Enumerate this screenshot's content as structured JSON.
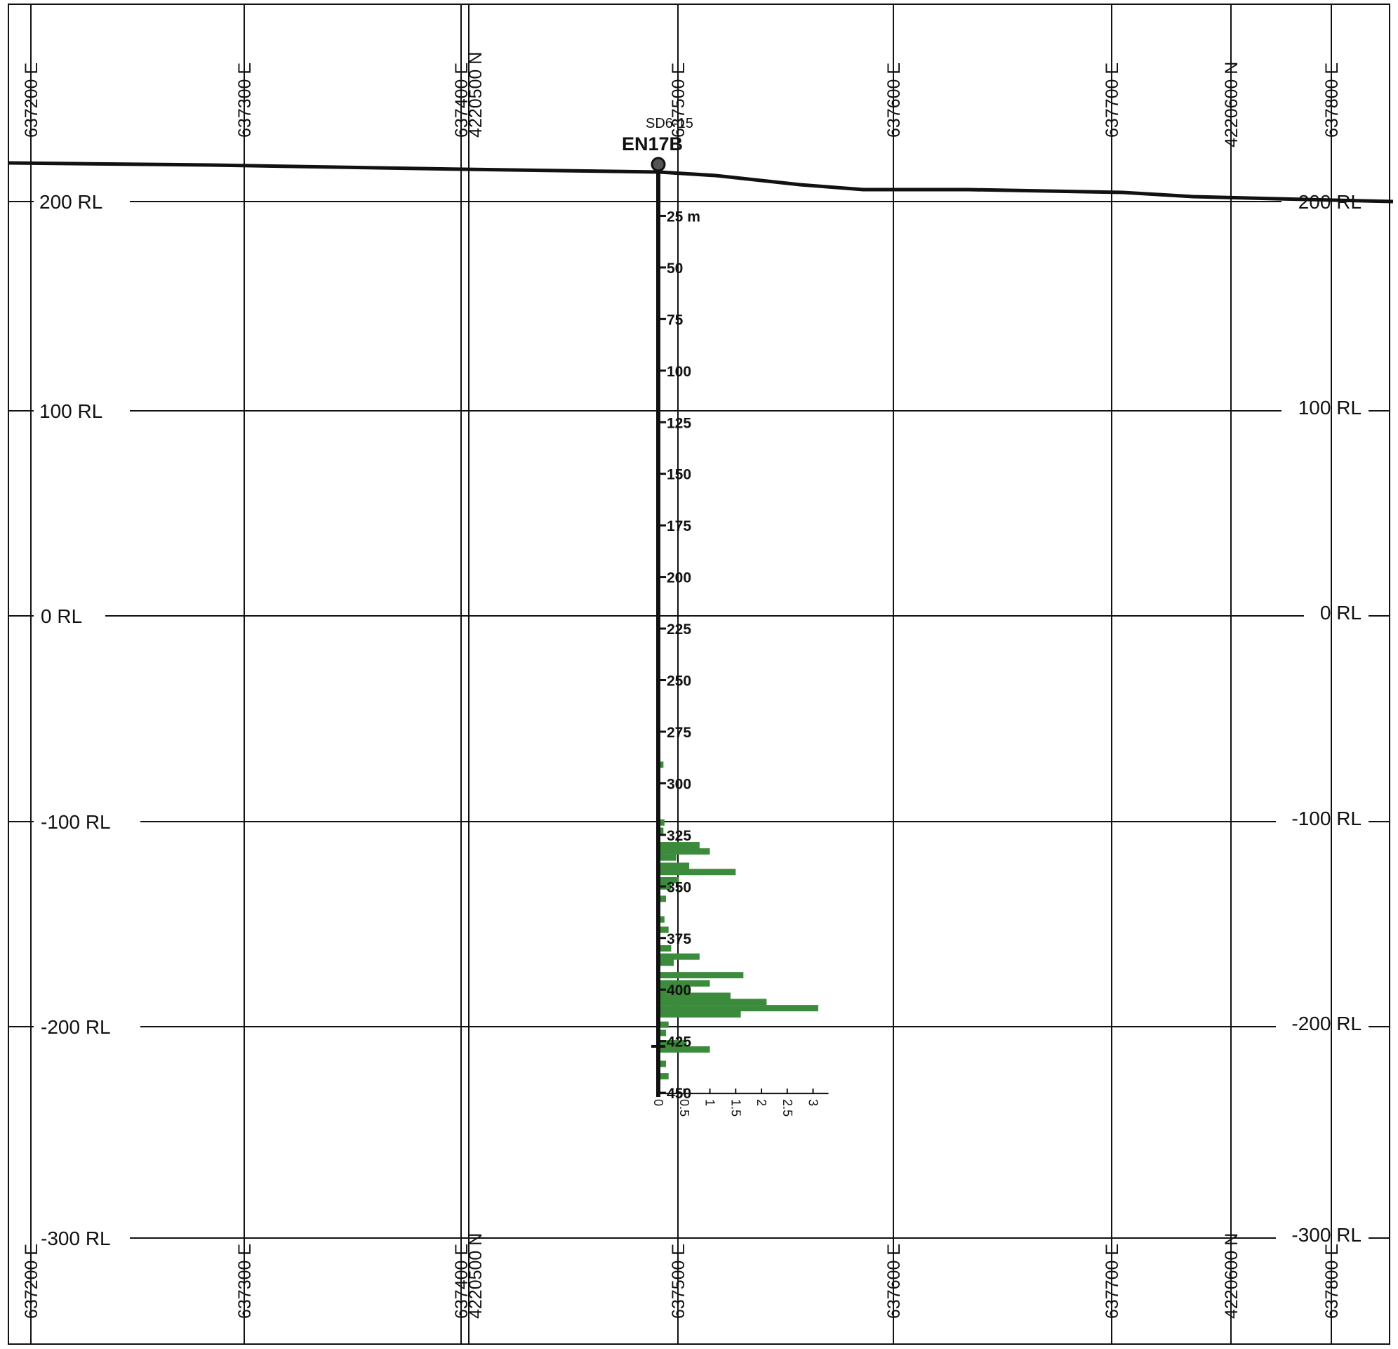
{
  "colors": {
    "grid": "#111111",
    "topography": "#111111",
    "drillhole": "#111111",
    "grade_bars": "#3c8a3c"
  },
  "easting_labels": {
    "e637200": "637200 E",
    "e637300": "637300 E",
    "e637400": "637400 E",
    "n4220500": "4220500 N",
    "e637500": "637500 E",
    "e637600": "637600 E",
    "e637700": "637700 E",
    "n4220600": "4220600 N",
    "e637800": "637800 E"
  },
  "rl_labels": {
    "rl200": "200 RL",
    "rl100": "100 RL",
    "rl0": "0 RL",
    "rl_minus100": "-100 RL",
    "rl_minus200": "-200 RL",
    "rl_minus300": "-300 RL"
  },
  "drillhole": {
    "name": "EN17B",
    "display_name": "EN17B",
    "survey_label": "SD6-15",
    "depth_unit_label": "25 m",
    "depth_ticks": [
      "50",
      "75",
      "100",
      "125",
      "150",
      "175",
      "200",
      "225",
      "250",
      "275",
      "300",
      "325",
      "350",
      "375",
      "400",
      "425",
      "450"
    ]
  },
  "chart_data": {
    "type": "bar",
    "orientation": "horizontal",
    "x_axis_ticks": [
      "0",
      "0.5",
      "1",
      "1.5",
      "2",
      "2.5",
      "3"
    ],
    "xlim": [
      0,
      3.3
    ],
    "depth_range_m": [
      0,
      450
    ],
    "bars": [
      {
        "depth": 291,
        "value": 0.1
      },
      {
        "depth": 319,
        "value": 0.12
      },
      {
        "depth": 323,
        "value": 0.1
      },
      {
        "depth": 330,
        "value": 0.8
      },
      {
        "depth": 333,
        "value": 1.0
      },
      {
        "depth": 336,
        "value": 0.35
      },
      {
        "depth": 340,
        "value": 0.6
      },
      {
        "depth": 343,
        "value": 1.5
      },
      {
        "depth": 347,
        "value": 0.4
      },
      {
        "depth": 350,
        "value": 0.25
      },
      {
        "depth": 356,
        "value": 0.15
      },
      {
        "depth": 366,
        "value": 0.12
      },
      {
        "depth": 371,
        "value": 0.2
      },
      {
        "depth": 380,
        "value": 0.25
      },
      {
        "depth": 384,
        "value": 0.8
      },
      {
        "depth": 387,
        "value": 0.3
      },
      {
        "depth": 393,
        "value": 1.65
      },
      {
        "depth": 397,
        "value": 1.0
      },
      {
        "depth": 400,
        "value": 0.6
      },
      {
        "depth": 403,
        "value": 1.4
      },
      {
        "depth": 406,
        "value": 2.1
      },
      {
        "depth": 409,
        "value": 3.1
      },
      {
        "depth": 412,
        "value": 1.6
      },
      {
        "depth": 417,
        "value": 0.2
      },
      {
        "depth": 421,
        "value": 0.15
      },
      {
        "depth": 426,
        "value": 0.55
      },
      {
        "depth": 429,
        "value": 1.0
      },
      {
        "depth": 436,
        "value": 0.15
      },
      {
        "depth": 442,
        "value": 0.2
      }
    ]
  }
}
